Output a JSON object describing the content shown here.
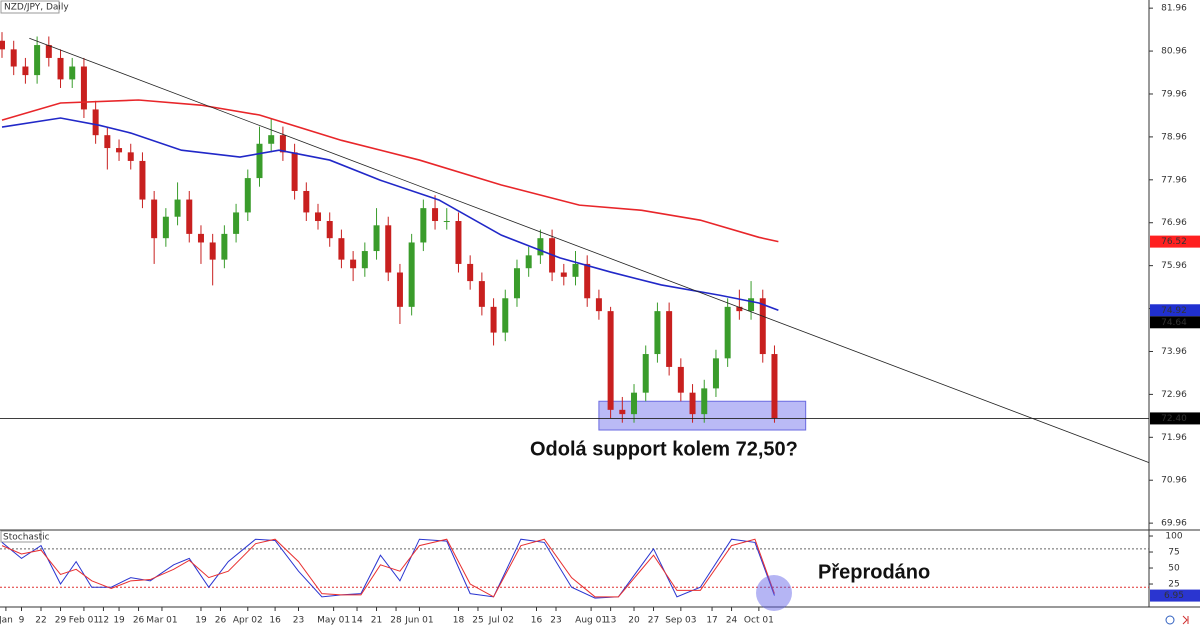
{
  "chart_data": [
    {
      "type": "candlestick",
      "title": "NZD/JPY, Daily",
      "x": [
        0,
        3,
        6,
        9,
        12,
        15,
        18,
        21,
        24,
        27,
        30,
        33,
        36,
        39,
        42,
        45,
        48,
        51,
        54,
        57,
        60,
        63,
        66,
        69,
        72,
        75,
        78,
        81,
        84,
        87,
        90,
        93,
        96,
        99,
        102,
        105,
        108,
        111,
        114,
        117,
        120,
        123,
        126,
        129,
        132,
        135,
        138,
        141,
        144,
        147,
        150,
        153,
        156,
        159,
        162,
        165,
        168,
        171,
        174,
        177,
        180,
        183,
        186,
        189,
        192,
        195,
        198
      ],
      "open": [
        81.2,
        81.0,
        80.6,
        80.4,
        81.1,
        80.8,
        80.3,
        80.6,
        79.6,
        79.0,
        78.7,
        78.6,
        78.4,
        77.5,
        76.6,
        77.1,
        77.5,
        76.7,
        76.5,
        76.1,
        76.7,
        77.2,
        78.0,
        78.8,
        79.0,
        78.6,
        77.7,
        77.2,
        77.0,
        76.6,
        76.1,
        75.9,
        76.3,
        76.9,
        75.8,
        75.0,
        76.5,
        77.3,
        77.0,
        77.0,
        76.0,
        75.6,
        75.0,
        74.4,
        75.2,
        75.9,
        76.2,
        76.6,
        75.8,
        75.7,
        76.0,
        75.2,
        74.9,
        72.6,
        72.5,
        73.0,
        73.9,
        74.9,
        73.6,
        73.0,
        72.5,
        73.1,
        73.8,
        75.0,
        74.9,
        75.2,
        73.9
      ],
      "high": [
        81.4,
        81.2,
        80.8,
        81.3,
        81.3,
        81.0,
        80.8,
        80.8,
        79.8,
        79.2,
        78.9,
        78.8,
        78.6,
        77.7,
        77.3,
        77.9,
        77.7,
        76.9,
        76.7,
        76.9,
        77.4,
        78.2,
        79.2,
        79.4,
        79.2,
        78.8,
        77.9,
        77.4,
        77.2,
        76.8,
        76.3,
        76.5,
        77.3,
        77.1,
        76.0,
        76.7,
        77.5,
        77.6,
        77.3,
        77.2,
        76.2,
        75.8,
        75.2,
        75.4,
        76.1,
        76.4,
        76.8,
        76.8,
        76.0,
        76.3,
        76.2,
        75.4,
        75.0,
        72.9,
        73.2,
        74.1,
        75.1,
        75.1,
        73.8,
        73.2,
        73.3,
        74.0,
        75.2,
        75.4,
        75.6,
        75.4,
        74.1
      ],
      "low": [
        80.8,
        80.4,
        80.2,
        80.2,
        80.6,
        80.1,
        80.1,
        79.4,
        78.8,
        78.2,
        78.4,
        78.2,
        77.3,
        76.0,
        76.4,
        76.9,
        76.5,
        76.0,
        75.5,
        75.9,
        76.5,
        77.0,
        77.8,
        78.6,
        78.4,
        77.5,
        77.0,
        76.8,
        76.4,
        75.9,
        75.6,
        75.7,
        76.1,
        75.6,
        74.6,
        74.8,
        76.3,
        76.8,
        76.8,
        75.8,
        75.4,
        74.8,
        74.1,
        74.2,
        75.0,
        75.7,
        76.0,
        75.6,
        75.5,
        75.5,
        75.0,
        74.7,
        72.4,
        72.3,
        72.3,
        72.8,
        73.7,
        73.4,
        72.8,
        72.3,
        72.3,
        72.9,
        73.6,
        74.7,
        74.7,
        73.7,
        72.3
      ],
      "close": [
        81.0,
        80.6,
        80.4,
        81.1,
        80.8,
        80.3,
        80.6,
        79.6,
        79.0,
        78.7,
        78.6,
        78.4,
        77.5,
        76.6,
        77.1,
        77.5,
        76.7,
        76.5,
        76.1,
        76.7,
        77.2,
        78.0,
        78.8,
        79.0,
        78.6,
        77.7,
        77.2,
        77.0,
        76.6,
        76.1,
        75.9,
        76.3,
        76.9,
        75.8,
        75.0,
        76.5,
        77.3,
        77.0,
        77.0,
        76.0,
        75.6,
        75.0,
        74.4,
        75.2,
        75.9,
        76.2,
        76.6,
        75.8,
        75.7,
        76.0,
        75.2,
        74.9,
        72.6,
        72.5,
        73.0,
        73.9,
        74.9,
        73.6,
        73.0,
        72.5,
        73.1,
        73.8,
        75.0,
        74.9,
        75.2,
        73.9,
        72.4
      ],
      "up_color": "#3a9c2b",
      "down_color": "#c8201f",
      "moving_averages": [
        {
          "color": "#e8262a",
          "x": [
            0,
            15,
            35,
            51,
            66,
            87,
            107,
            128,
            148,
            164,
            179,
            194,
            199
          ],
          "values": [
            79.35,
            79.75,
            79.82,
            79.7,
            79.47,
            78.88,
            78.42,
            77.84,
            77.37,
            77.25,
            77.02,
            76.62,
            76.52
          ]
        },
        {
          "color": "#2128c8",
          "x": [
            0,
            15,
            25,
            33,
            46,
            61,
            71,
            84,
            97,
            112,
            128,
            143,
            156,
            169,
            184,
            194,
            199
          ],
          "values": [
            79.19,
            79.4,
            79.23,
            79.05,
            78.65,
            78.49,
            78.65,
            78.42,
            77.95,
            77.49,
            76.67,
            76.14,
            75.81,
            75.51,
            75.27,
            75.09,
            74.92
          ]
        }
      ],
      "trendline": {
        "x": [
          7,
          294
        ],
        "values": [
          81.26,
          71.37
        ]
      },
      "zone": {
        "x": [
          153,
          206
        ],
        "values": [
          72.13,
          72.8
        ],
        "color": "#8c8cf0"
      },
      "ylim": [
        69.8,
        82.15
      ],
      "xlim": [
        0,
        294
      ],
      "yticks": [
        81.96,
        80.96,
        79.96,
        78.96,
        77.96,
        76.96,
        75.96,
        74.96,
        73.96,
        72.96,
        71.96,
        70.96,
        69.96
      ],
      "price_tags": [
        {
          "value": 76.52,
          "color": "#ff2020"
        },
        {
          "value": 74.92,
          "color": "#2030d0"
        },
        {
          "value": 74.64,
          "color": "#000000"
        },
        {
          "value": 72.4,
          "label": "72.40",
          "color": "#000000"
        }
      ],
      "annotation": "Odolá support kolem 72,50?",
      "xticks": [
        {
          "value": 1,
          "label": "Jan"
        },
        {
          "value": 5,
          "label": "9"
        },
        {
          "value": 10,
          "label": "22"
        },
        {
          "value": 15,
          "label": "29"
        },
        {
          "value": 21,
          "label": "Feb 01"
        },
        {
          "value": 26,
          "label": "12"
        },
        {
          "value": 30,
          "label": "19"
        },
        {
          "value": 35,
          "label": "26"
        },
        {
          "value": 41,
          "label": "Mar 01"
        },
        {
          "value": 51,
          "label": "19"
        },
        {
          "value": 56,
          "label": "26"
        },
        {
          "value": 63,
          "label": "Apr 02"
        },
        {
          "value": 70,
          "label": "16"
        },
        {
          "value": 76,
          "label": "23"
        },
        {
          "value": 85,
          "label": "May 01"
        },
        {
          "value": 91,
          "label": "14"
        },
        {
          "value": 96,
          "label": "21"
        },
        {
          "value": 101,
          "label": "28"
        },
        {
          "value": 107,
          "label": "Jun 01"
        },
        {
          "value": 117,
          "label": "18"
        },
        {
          "value": 122,
          "label": "25"
        },
        {
          "value": 128,
          "label": "Jul 02"
        },
        {
          "value": 137,
          "label": "16"
        },
        {
          "value": 142,
          "label": "23"
        },
        {
          "value": 151,
          "label": "Aug 01"
        },
        {
          "value": 156,
          "label": "13"
        },
        {
          "value": 162,
          "label": "20"
        },
        {
          "value": 167,
          "label": "27"
        },
        {
          "value": 174,
          "label": "Sep 03"
        },
        {
          "value": 182,
          "label": "17"
        },
        {
          "value": 187,
          "label": "24"
        },
        {
          "value": 194,
          "label": "Oct 01"
        }
      ]
    },
    {
      "type": "line",
      "title": "Stochastic",
      "x": [
        0,
        5,
        10,
        15,
        19,
        23,
        28,
        33,
        38,
        44,
        48,
        53,
        58,
        65,
        70,
        76,
        82,
        87,
        92,
        97,
        102,
        107,
        114,
        120,
        126,
        133,
        139,
        146,
        152,
        158,
        167,
        173,
        179,
        187,
        193,
        198
      ],
      "series": [
        {
          "color": "#2a35d0",
          "values": [
            90,
            65,
            85,
            25,
            60,
            20,
            20,
            35,
            30,
            55,
            65,
            20,
            60,
            95,
            93,
            45,
            5,
            8,
            10,
            70,
            30,
            95,
            92,
            10,
            5,
            95,
            90,
            20,
            3,
            5,
            80,
            5,
            20,
            95,
            90,
            6.95
          ]
        },
        {
          "color": "#e83030",
          "values": [
            85,
            72,
            78,
            40,
            48,
            30,
            18,
            30,
            32,
            48,
            62,
            35,
            45,
            88,
            95,
            60,
            10,
            8,
            8,
            55,
            45,
            85,
            95,
            25,
            5,
            85,
            95,
            35,
            5,
            5,
            70,
            15,
            15,
            85,
            95,
            10
          ]
        }
      ],
      "levels": [
        {
          "value": 80,
          "color": "#666666"
        },
        {
          "value": 20,
          "color": "#e03030"
        }
      ],
      "ylim": [
        -10.9,
        109.4
      ],
      "yticks": [
        100,
        75,
        50,
        25
      ],
      "annotation": "Přeprodáno"
    }
  ]
}
